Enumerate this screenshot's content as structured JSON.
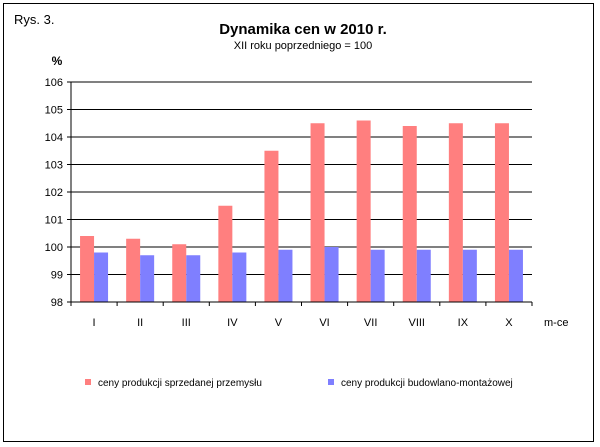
{
  "figure_label": "Rys. 3.",
  "chart_data": {
    "type": "bar",
    "title": "Dynamika cen w 2010 r.",
    "subtitle": "XII roku poprzedniego = 100",
    "ylabel": "%",
    "xlabel": "m-ce",
    "ylim": [
      98,
      106
    ],
    "yticks": [
      98,
      99,
      100,
      101,
      102,
      103,
      104,
      105,
      106
    ],
    "grid": true,
    "legend_position": "bottom",
    "categories": [
      "I",
      "II",
      "III",
      "IV",
      "V",
      "VI",
      "VII",
      "VIII",
      "IX",
      "X"
    ],
    "series": [
      {
        "name": "ceny produkcji sprzedanej przemysłu",
        "color": "#FF7F7F",
        "values": [
          100.4,
          100.3,
          100.1,
          101.5,
          103.5,
          104.5,
          104.6,
          104.4,
          104.5,
          104.5
        ]
      },
      {
        "name": "ceny produkcji budowlano-montażowej",
        "color": "#7F7FFF",
        "values": [
          99.8,
          99.7,
          99.7,
          99.8,
          99.9,
          100.0,
          99.9,
          99.9,
          99.9,
          99.9
        ]
      }
    ]
  }
}
